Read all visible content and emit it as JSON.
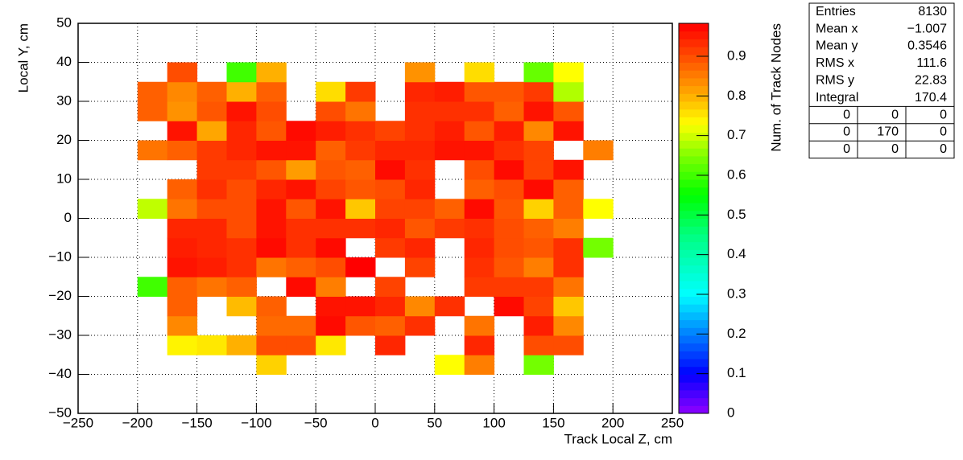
{
  "chart_data": {
    "type": "heatmap",
    "xlabel": "Track Local Z, cm",
    "ylabel": "Local Y, cm",
    "zlabel": "Num. of Track Nodes",
    "x_bins": [
      -200,
      -175,
      -150,
      -125,
      -100,
      -75,
      -50,
      -25,
      0,
      25,
      50,
      75,
      100,
      125,
      150,
      175,
      200
    ],
    "y_bins": [
      -40,
      -35,
      -30,
      -25,
      -20,
      -15,
      -10,
      -5,
      0,
      5,
      10,
      15,
      20,
      25,
      30,
      35,
      40
    ],
    "z": [
      [
        null,
        null,
        null,
        null,
        0.77,
        null,
        null,
        null,
        null,
        null,
        0.73,
        0.85,
        null,
        0.64,
        null,
        null
      ],
      [
        null,
        0.74,
        0.75,
        0.8,
        0.9,
        0.9,
        0.75,
        null,
        0.94,
        null,
        null,
        0.94,
        null,
        0.9,
        0.9,
        null
      ],
      [
        null,
        0.84,
        null,
        null,
        0.87,
        0.87,
        0.97,
        0.89,
        0.88,
        0.93,
        null,
        0.86,
        null,
        0.95,
        0.84,
        null
      ],
      [
        null,
        0.88,
        null,
        0.79,
        0.88,
        null,
        0.96,
        0.96,
        0.94,
        0.84,
        0.93,
        null,
        0.97,
        0.91,
        0.78,
        null
      ],
      [
        0.6,
        0.88,
        0.86,
        0.88,
        null,
        0.97,
        0.85,
        null,
        0.91,
        null,
        null,
        0.92,
        0.92,
        0.92,
        0.86,
        null
      ],
      [
        null,
        0.96,
        0.95,
        0.93,
        0.86,
        0.88,
        0.9,
        0.98,
        null,
        0.91,
        null,
        0.93,
        0.89,
        0.85,
        0.93,
        null
      ],
      [
        null,
        0.95,
        0.94,
        0.93,
        0.97,
        0.93,
        0.97,
        null,
        0.92,
        0.94,
        null,
        0.94,
        0.9,
        0.89,
        0.93,
        0.64
      ],
      [
        null,
        0.94,
        0.94,
        0.9,
        0.96,
        0.93,
        0.93,
        0.93,
        0.94,
        0.89,
        0.92,
        0.93,
        0.9,
        0.88,
        0.85,
        null
      ],
      [
        0.69,
        0.86,
        0.9,
        0.9,
        0.96,
        0.89,
        0.96,
        0.78,
        0.91,
        0.91,
        0.88,
        0.97,
        0.89,
        0.77,
        0.88,
        0.73
      ],
      [
        null,
        0.88,
        0.93,
        0.9,
        0.94,
        0.96,
        0.91,
        0.89,
        0.9,
        0.94,
        null,
        0.88,
        0.9,
        0.97,
        0.88,
        null
      ],
      [
        null,
        null,
        0.92,
        0.92,
        0.89,
        0.82,
        0.89,
        0.88,
        0.97,
        0.93,
        null,
        0.9,
        0.97,
        0.91,
        0.96,
        null
      ],
      [
        0.86,
        0.88,
        0.92,
        0.94,
        0.96,
        0.96,
        0.88,
        0.92,
        0.94,
        0.94,
        0.96,
        0.96,
        0.93,
        0.91,
        null,
        0.85
      ],
      [
        null,
        0.96,
        0.81,
        0.94,
        0.89,
        0.97,
        0.95,
        0.93,
        0.91,
        0.93,
        0.95,
        0.89,
        0.95,
        0.84,
        0.96,
        null
      ],
      [
        0.88,
        0.83,
        0.89,
        0.96,
        0.9,
        null,
        0.9,
        0.86,
        null,
        0.93,
        0.93,
        0.93,
        0.88,
        0.96,
        0.89,
        null
      ],
      [
        0.88,
        0.84,
        0.88,
        0.8,
        0.88,
        null,
        0.76,
        0.92,
        null,
        0.94,
        0.95,
        0.89,
        0.89,
        0.92,
        0.68,
        null
      ],
      [
        null,
        0.9,
        null,
        0.6,
        0.8,
        null,
        null,
        null,
        null,
        0.83,
        null,
        0.76,
        null,
        0.63,
        0.73,
        null
      ]
    ],
    "xlim": [
      -250,
      250
    ],
    "ylim": [
      -50,
      50
    ],
    "zlim": [
      0,
      0.983
    ],
    "xticks": [
      {
        "value": -250,
        "label": "−250"
      },
      {
        "value": -200,
        "label": "−200"
      },
      {
        "value": -150,
        "label": "−150"
      },
      {
        "value": -100,
        "label": "−100"
      },
      {
        "value": -50,
        "label": "−50"
      },
      0,
      50,
      100,
      150,
      200,
      250
    ],
    "yticks": [
      {
        "value": -50,
        "label": "−50"
      },
      {
        "value": -40,
        "label": "−40"
      },
      {
        "value": -30,
        "label": "−30"
      },
      {
        "value": -20,
        "label": "−20"
      },
      {
        "value": -10,
        "label": "−10"
      },
      0,
      10,
      20,
      30,
      40,
      50
    ],
    "zticks": [
      0,
      0.1,
      0.2,
      0.3,
      0.4,
      0.5,
      0.6,
      0.7,
      0.8,
      0.9
    ],
    "grid": true,
    "colorscale": [
      [
        0,
        "#9000ff"
      ],
      [
        0.1,
        "#0000ff"
      ],
      [
        0.2,
        "#0080ff"
      ],
      [
        0.3,
        "#00ffff"
      ],
      [
        0.45,
        "#00ff80"
      ],
      [
        0.55,
        "#00ff00"
      ],
      [
        0.65,
        "#80ff00"
      ],
      [
        0.73,
        "#ffff00"
      ],
      [
        0.8,
        "#ffb000"
      ],
      [
        0.88,
        "#ff6000"
      ],
      [
        0.98,
        "#ff0000"
      ]
    ],
    "stats": {
      "rows": [
        [
          "Entries",
          "8130"
        ],
        [
          "Mean x",
          "−1.007"
        ],
        [
          "Mean y",
          "0.3546"
        ],
        [
          "RMS x",
          "111.6"
        ],
        [
          "RMS y",
          "22.83"
        ],
        [
          "Integral",
          "170.4"
        ]
      ],
      "grid": [
        [
          "0",
          "0",
          "0"
        ],
        [
          "0",
          "170",
          "0"
        ],
        [
          "0",
          "0",
          "0"
        ]
      ]
    }
  }
}
